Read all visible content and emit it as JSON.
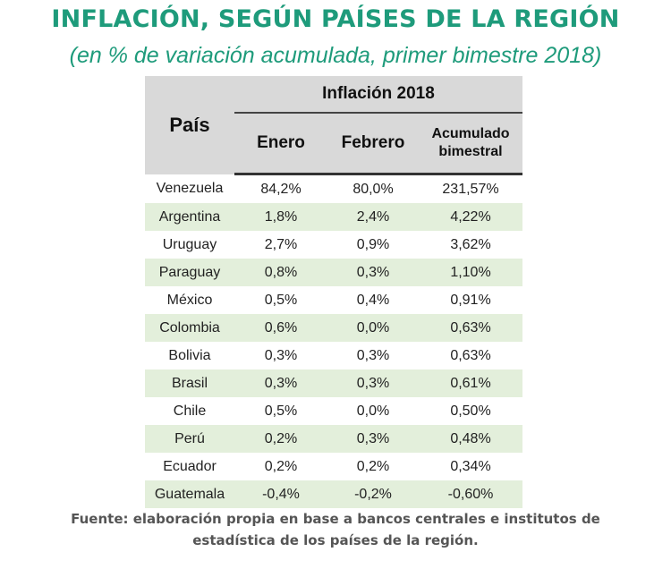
{
  "title": "INFLACIÓN, SEGÚN PAÍSES DE LA REGIÓN",
  "subtitle": "(en % de variación acumulada, primer bimestre 2018)",
  "table": {
    "country_header": "País",
    "group_header": "Inflación 2018",
    "col_jan": "Enero",
    "col_feb": "Febrero",
    "col_acc_line1": "Acumulado",
    "col_acc_line2": "bimestral",
    "rows": [
      {
        "country": "Venezuela",
        "jan": "84,2%",
        "feb": "80,0%",
        "acc": "231,57%"
      },
      {
        "country": "Argentina",
        "jan": "1,8%",
        "feb": "2,4%",
        "acc": "4,22%"
      },
      {
        "country": "Uruguay",
        "jan": "2,7%",
        "feb": "0,9%",
        "acc": "3,62%"
      },
      {
        "country": "Paraguay",
        "jan": "0,8%",
        "feb": "0,3%",
        "acc": "1,10%"
      },
      {
        "country": "México",
        "jan": "0,5%",
        "feb": "0,4%",
        "acc": "0,91%"
      },
      {
        "country": "Colombia",
        "jan": "0,6%",
        "feb": "0,0%",
        "acc": "0,63%"
      },
      {
        "country": "Bolivia",
        "jan": "0,3%",
        "feb": "0,3%",
        "acc": "0,63%"
      },
      {
        "country": "Brasil",
        "jan": "0,3%",
        "feb": "0,3%",
        "acc": "0,61%"
      },
      {
        "country": "Chile",
        "jan": "0,5%",
        "feb": "0,0%",
        "acc": "0,50%"
      },
      {
        "country": "Perú",
        "jan": "0,2%",
        "feb": "0,3%",
        "acc": "0,48%"
      },
      {
        "country": "Ecuador",
        "jan": "0,2%",
        "feb": "0,2%",
        "acc": "0,34%"
      },
      {
        "country": "Guatemala",
        "jan": "-0,4%",
        "feb": "-0,2%",
        "acc": "-0,60%"
      }
    ]
  },
  "source_line1": "Fuente: elaboración propia en base a bancos centrales e institutos de",
  "source_line2": "estadística de los países de la región.",
  "colors": {
    "title": "#1e9b7b",
    "header_bg": "#d9d9d9",
    "stripe": "#e3efdb"
  }
}
